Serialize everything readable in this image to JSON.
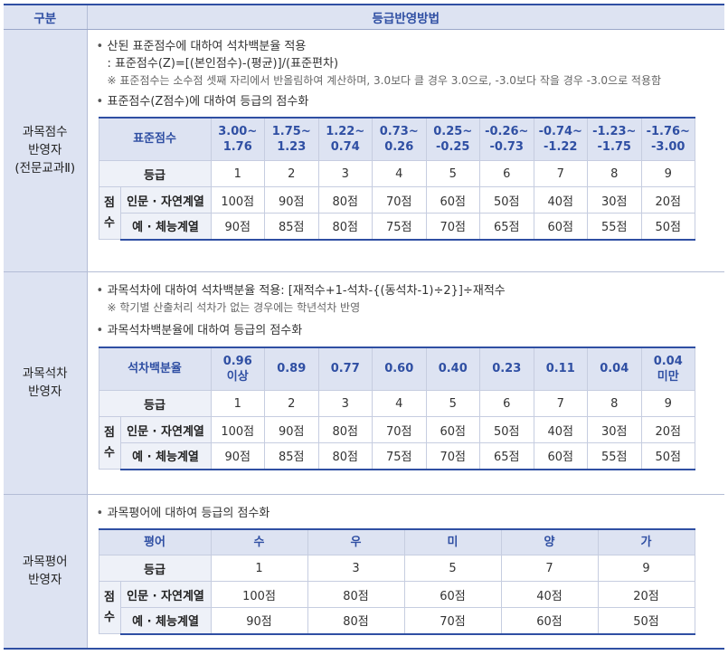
{
  "header": {
    "col1": "구분",
    "col2": "등급반영방법"
  },
  "sections": {
    "s1": {
      "category": [
        "과목점수",
        "반영자",
        "(전문교과Ⅱ)"
      ],
      "bullet1": "산된 표준점수에 대하여 석차백분율 적용",
      "formula": ": 표준점수(Z)=[(본인점수)-(평균)]/(표준편차)",
      "note": "※ 표준점수는 소수점 셋째 자리에서 반올림하여 계산하며, 3.0보다 클 경우 3.0으로, -3.0보다 작을 경우 -3.0으로 적용함",
      "bullet2": "표준점수(Z점수)에 대하여 등급의 점수화",
      "head_label": "표준점수",
      "head_values": [
        [
          "3.00~",
          "1.76"
        ],
        [
          "1.75~",
          "1.23"
        ],
        [
          "1.22~",
          "0.74"
        ],
        [
          "0.73~",
          "0.26"
        ],
        [
          "0.25~",
          "-0.25"
        ],
        [
          "-0.26~",
          "-0.73"
        ],
        [
          "-0.74~",
          "-1.22"
        ],
        [
          "-1.23~",
          "-1.75"
        ],
        [
          "-1.76~",
          "-3.00"
        ]
      ],
      "grade_label": "등급",
      "grades": [
        "1",
        "2",
        "3",
        "4",
        "5",
        "6",
        "7",
        "8",
        "9"
      ],
      "score_label": [
        "점",
        "수"
      ],
      "row1_label": "인문 · 자연계열",
      "row1": [
        "100점",
        "90점",
        "80점",
        "70점",
        "60점",
        "50점",
        "40점",
        "30점",
        "20점"
      ],
      "row2_label": "예 · 체능계열",
      "row2": [
        "90점",
        "85점",
        "80점",
        "75점",
        "70점",
        "65점",
        "60점",
        "55점",
        "50점"
      ]
    },
    "s2": {
      "category": [
        "과목석차",
        "반영자"
      ],
      "bullet1": "과목석차에 대하여 석차백분율 적용: [재적수+1-석차-{(동석차-1)÷2}]÷재적수",
      "note": "※ 학기별 산출처리 석차가 없는 경우에는 학년석차 반영",
      "bullet2": "과목석차백분율에 대하여 등급의 점수화",
      "head_label": "석차백분율",
      "head_values": [
        [
          "0.96",
          "이상"
        ],
        [
          "0.89"
        ],
        [
          "0.77"
        ],
        [
          "0.60"
        ],
        [
          "0.40"
        ],
        [
          "0.23"
        ],
        [
          "0.11"
        ],
        [
          "0.04"
        ],
        [
          "0.04",
          "미만"
        ]
      ],
      "grade_label": "등급",
      "grades": [
        "1",
        "2",
        "3",
        "4",
        "5",
        "6",
        "7",
        "8",
        "9"
      ],
      "score_label": [
        "점",
        "수"
      ],
      "row1_label": "인문 · 자연계열",
      "row1": [
        "100점",
        "90점",
        "80점",
        "70점",
        "60점",
        "50점",
        "40점",
        "30점",
        "20점"
      ],
      "row2_label": "예 · 체능계열",
      "row2": [
        "90점",
        "85점",
        "80점",
        "75점",
        "70점",
        "65점",
        "60점",
        "55점",
        "50점"
      ]
    },
    "s3": {
      "category": [
        "과목평어",
        "반영자"
      ],
      "bullet1": "과목평어에 대하여 등급의 점수화",
      "head_label": "평어",
      "head_values": [
        "수",
        "우",
        "미",
        "양",
        "가"
      ],
      "grade_label": "등급",
      "grades": [
        "1",
        "3",
        "5",
        "7",
        "9"
      ],
      "score_label": [
        "점",
        "수"
      ],
      "row1_label": "인문 · 자연계열",
      "row1": [
        "100점",
        "80점",
        "60점",
        "40점",
        "20점"
      ],
      "row2_label": "예 · 체능계열",
      "row2": [
        "90점",
        "80점",
        "70점",
        "60점",
        "50점"
      ]
    }
  }
}
